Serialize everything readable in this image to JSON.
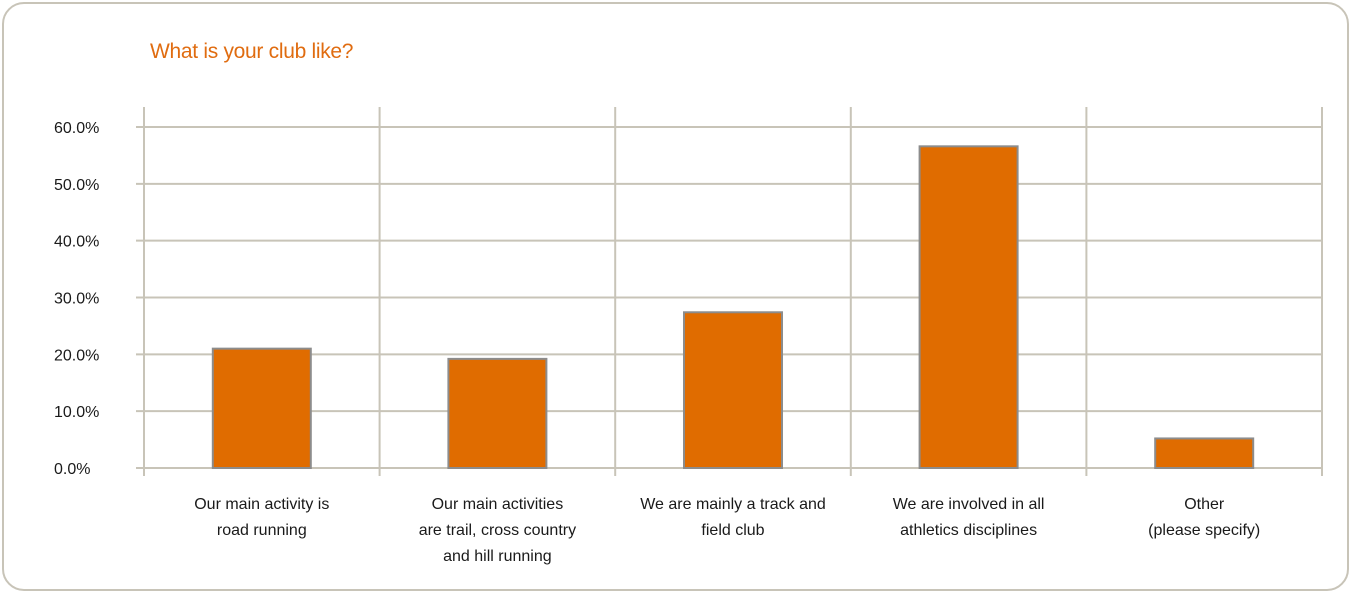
{
  "chart_data": {
    "type": "bar",
    "title": "What is your club like?",
    "categories": [
      [
        "Our main activity is",
        "road running"
      ],
      [
        "Our main activities",
        "are trail, cross country",
        "and hill running"
      ],
      [
        "We are mainly a track and",
        "field club"
      ],
      [
        "We are involved in all",
        "athletics disciplines"
      ],
      [
        "Other",
        "(please specify)"
      ]
    ],
    "values": [
      21.0,
      19.2,
      27.4,
      56.6,
      5.2
    ],
    "ylim": [
      0,
      60
    ],
    "yticks": [
      "0.0%",
      "10.0%",
      "20.0%",
      "30.0%",
      "40.0%",
      "50.0%",
      "60.0%"
    ],
    "xlabel": "",
    "ylabel": "",
    "grid": true,
    "bar_color": "#e06c00",
    "bar_border_color": "#8c8c8c",
    "grid_color": "#c8c4b8"
  }
}
